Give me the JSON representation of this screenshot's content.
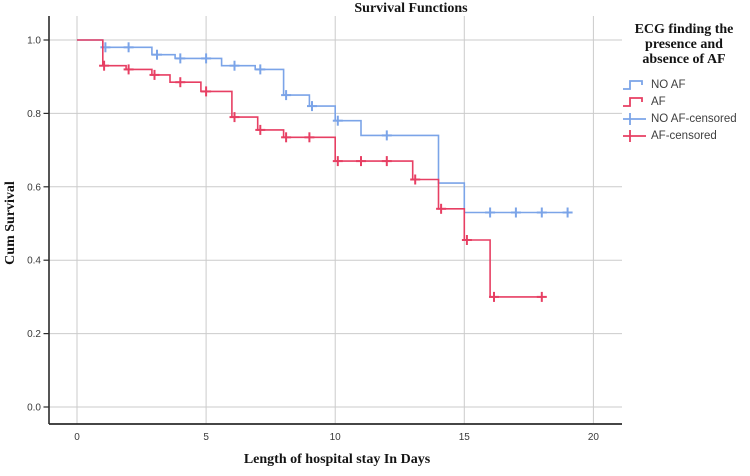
{
  "title": "Survival Functions",
  "axes": {
    "x": {
      "title": "Length of hospital stay In Days",
      "ticks": [
        0,
        5,
        10,
        15,
        20
      ],
      "min": 0,
      "max": 20
    },
    "y": {
      "title": "Cum Survival",
      "ticks": [
        "0.0",
        "0.2",
        "0.4",
        "0.6",
        "0.8",
        "1.0"
      ],
      "min": 0,
      "max": 1.0
    }
  },
  "legend": {
    "title_lines": [
      "ECG finding the",
      "presence and",
      "absence of AF"
    ],
    "entries": [
      {
        "label": "NO AF",
        "color": "#7BA4E8",
        "glyph": "step-line"
      },
      {
        "label": "AF",
        "color": "#E73F63",
        "glyph": "step-line"
      },
      {
        "label": "NO AF-censored",
        "color": "#7BA4E8",
        "glyph": "plus-marker"
      },
      {
        "label": "AF-censored",
        "color": "#E73F63",
        "glyph": "plus-marker"
      }
    ]
  },
  "chart_data": {
    "type": "line",
    "subtype": "kaplan-meier-step",
    "title": "Survival Functions",
    "xlabel": "Length of hospital stay In Days",
    "ylabel": "Cum Survival",
    "xlim": [
      0,
      20
    ],
    "ylim": [
      0.0,
      1.0
    ],
    "grid": true,
    "legend_position": "right",
    "series": [
      {
        "name": "NO AF",
        "color": "#7BA4E8",
        "steps": [
          [
            0,
            1.0
          ],
          [
            1,
            0.98
          ],
          [
            2.9,
            0.96
          ],
          [
            3.8,
            0.95
          ],
          [
            5.6,
            0.93
          ],
          [
            6.9,
            0.92
          ],
          [
            8,
            0.85
          ],
          [
            9,
            0.82
          ],
          [
            10,
            0.78
          ],
          [
            11,
            0.74
          ],
          [
            14,
            0.61
          ],
          [
            15,
            0.53
          ]
        ],
        "end_x": 19,
        "censored": [
          [
            1.1,
            0.98
          ],
          [
            2,
            0.98
          ],
          [
            3.1,
            0.96
          ],
          [
            4,
            0.95
          ],
          [
            5,
            0.95
          ],
          [
            6.1,
            0.93
          ],
          [
            7.1,
            0.92
          ],
          [
            8.1,
            0.85
          ],
          [
            9.1,
            0.82
          ],
          [
            10.1,
            0.78
          ],
          [
            12,
            0.74
          ],
          [
            16,
            0.53
          ],
          [
            17,
            0.53
          ],
          [
            18,
            0.53
          ],
          [
            19,
            0.53
          ]
        ]
      },
      {
        "name": "AF",
        "color": "#E73F63",
        "steps": [
          [
            0,
            1.0
          ],
          [
            1,
            0.93
          ],
          [
            1.9,
            0.92
          ],
          [
            2.9,
            0.905
          ],
          [
            3.6,
            0.885
          ],
          [
            4.8,
            0.86
          ],
          [
            6,
            0.79
          ],
          [
            7,
            0.755
          ],
          [
            8,
            0.735
          ],
          [
            10,
            0.67
          ],
          [
            13,
            0.62
          ],
          [
            14,
            0.54
          ],
          [
            15,
            0.455
          ],
          [
            16,
            0.3
          ]
        ],
        "end_x": 18,
        "censored": [
          [
            1.05,
            0.93
          ],
          [
            2,
            0.92
          ],
          [
            3,
            0.905
          ],
          [
            4,
            0.885
          ],
          [
            5,
            0.86
          ],
          [
            6.1,
            0.79
          ],
          [
            7.1,
            0.755
          ],
          [
            8.1,
            0.735
          ],
          [
            9,
            0.735
          ],
          [
            10.1,
            0.67
          ],
          [
            11,
            0.67
          ],
          [
            12,
            0.67
          ],
          [
            13.1,
            0.62
          ],
          [
            14.1,
            0.54
          ],
          [
            15.1,
            0.455
          ],
          [
            16.15,
            0.3
          ],
          [
            18,
            0.3
          ]
        ]
      }
    ]
  },
  "colors": {
    "no_af_blue": "#7BA4E8",
    "af_red": "#E73F63",
    "grid": "#CBCBCB",
    "axis": "#2B2B2B",
    "tick_label": "#3A3A3A",
    "legend_text": "#3F3F3F",
    "background": "#FFFFFF"
  }
}
